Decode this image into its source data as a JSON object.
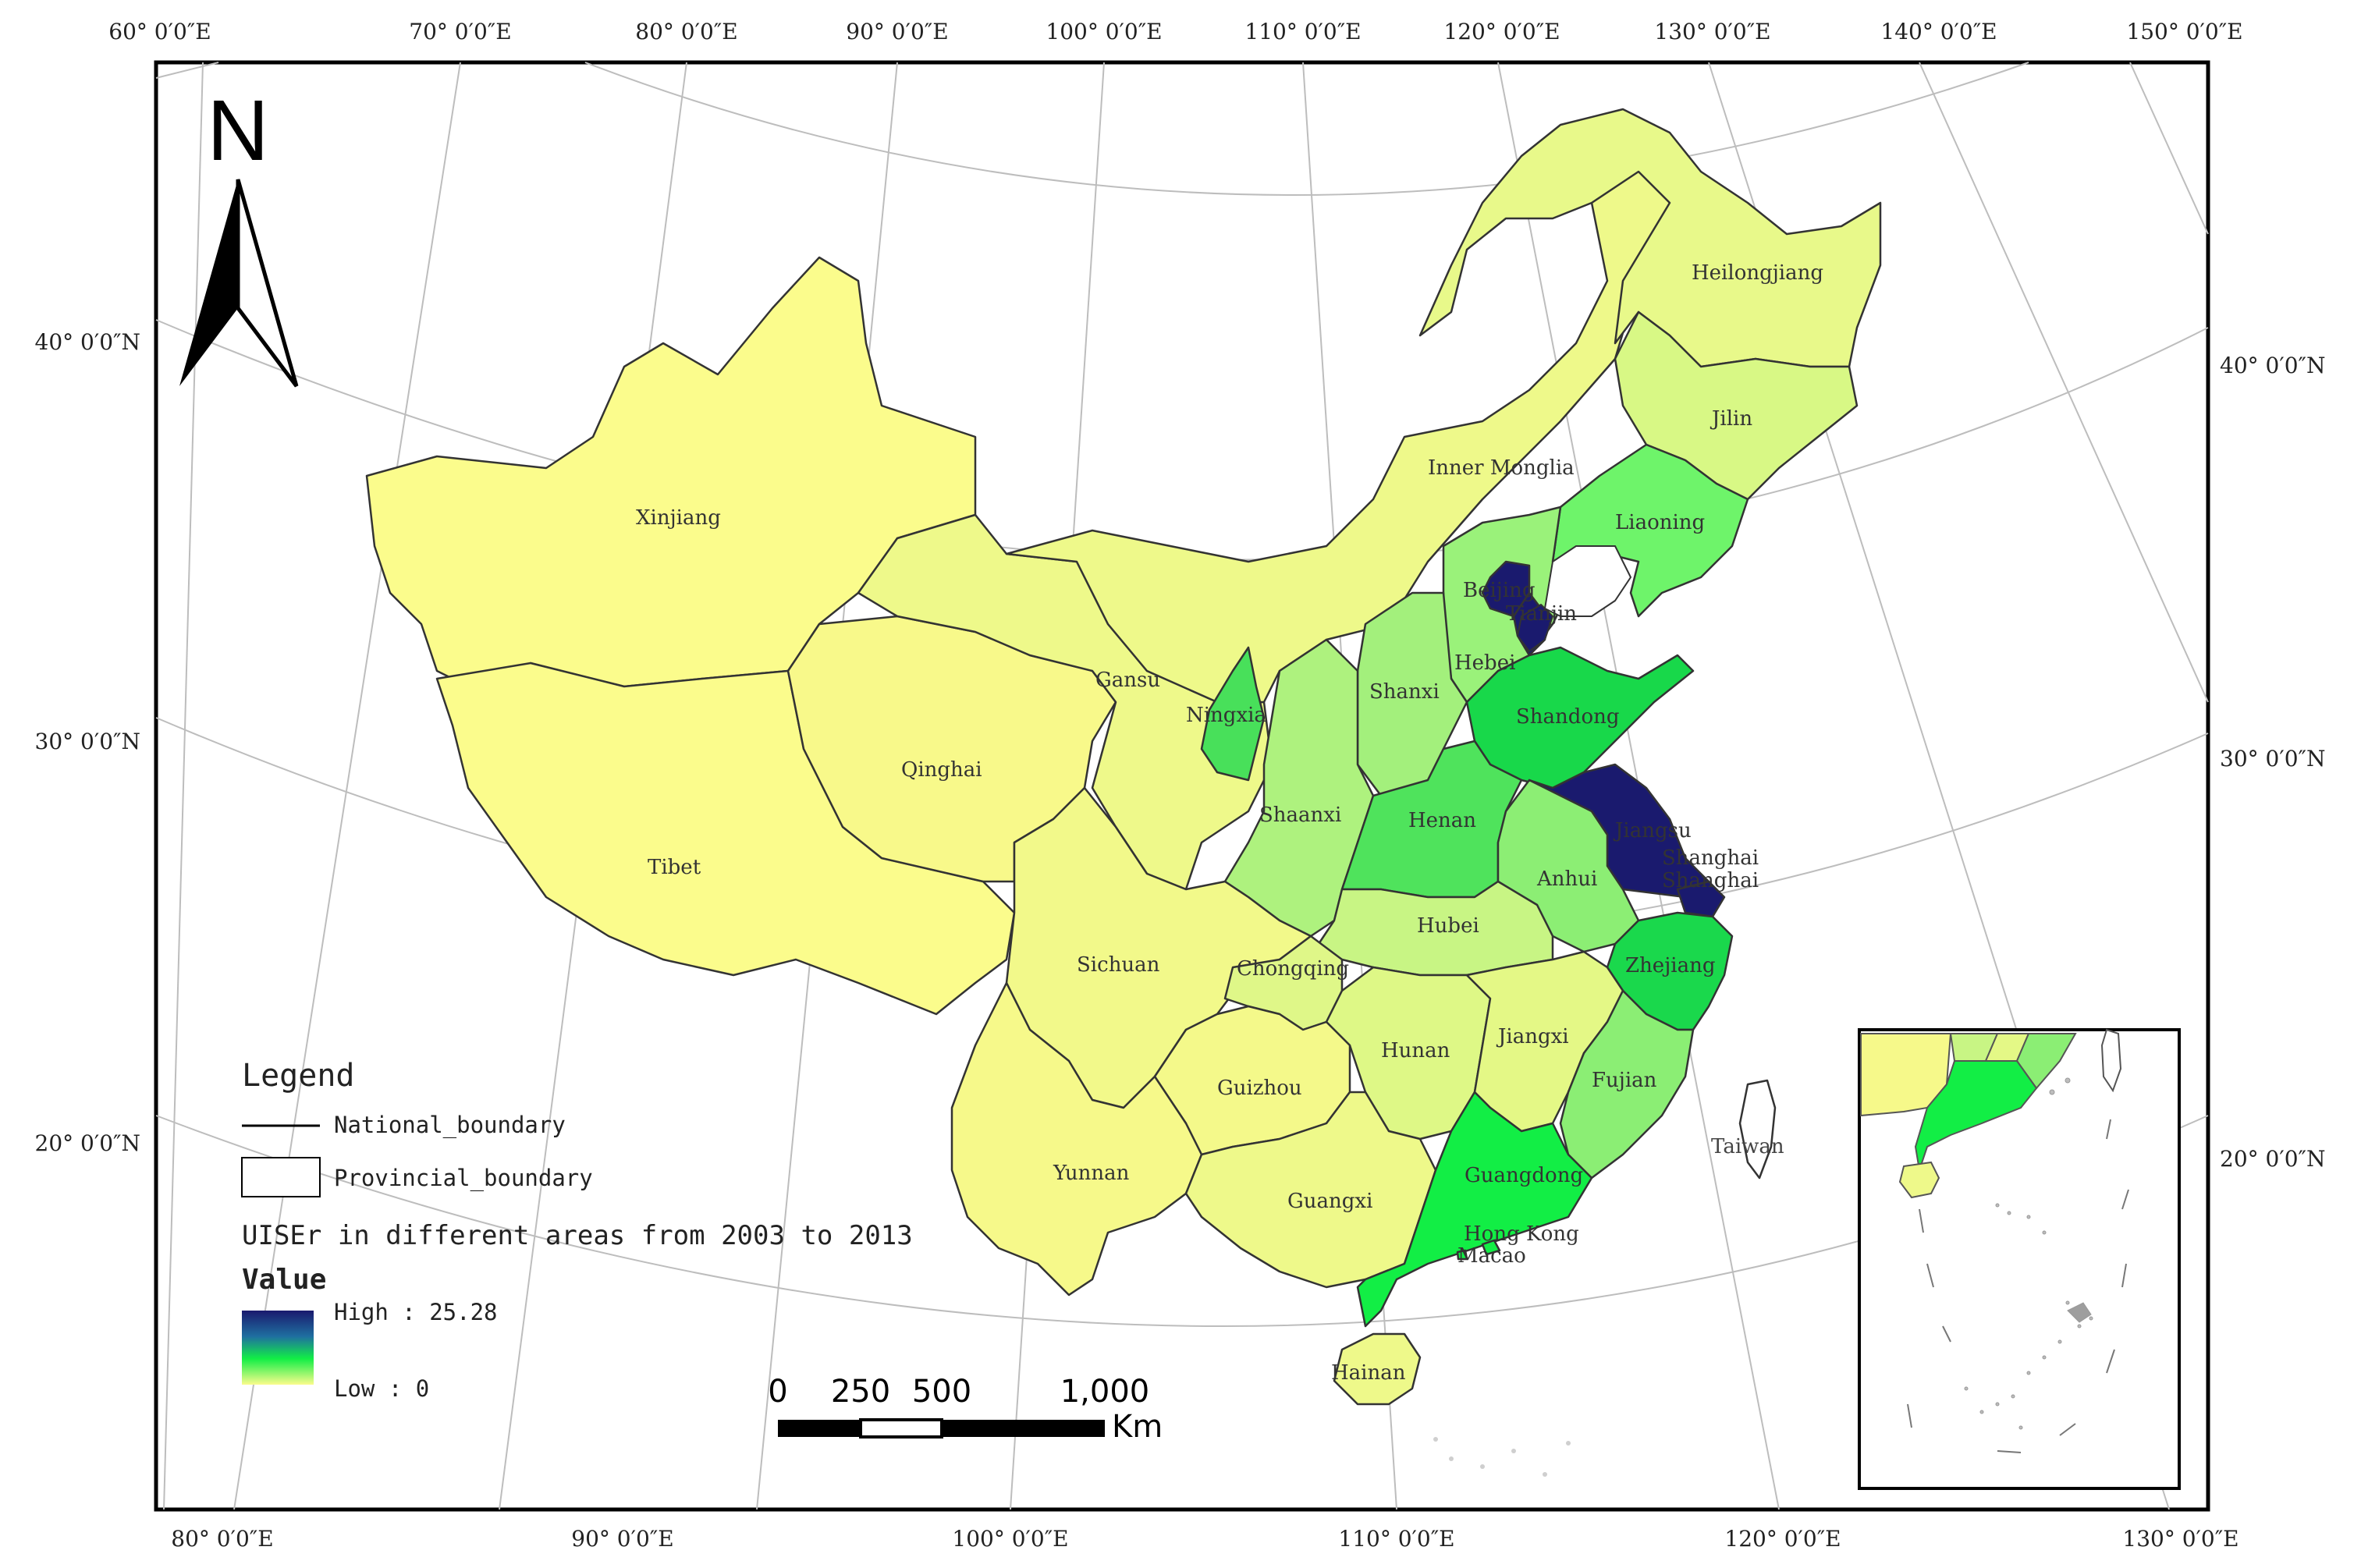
{
  "map": {
    "north_arrow": {
      "label": "N"
    },
    "top_lon_labels": [
      "60° 0′0″E",
      "70° 0′0″E",
      "80° 0′0″E",
      "90° 0′0″E",
      "100° 0′0″E",
      "110° 0′0″E",
      "120° 0′0″E",
      "130° 0′0″E",
      "140° 0′0″E",
      "150° 0′0″E"
    ],
    "bottom_lon_labels": [
      "80° 0′0″E",
      "90° 0′0″E",
      "100° 0′0″E",
      "110° 0′0″E",
      "120° 0′0″E",
      "130° 0′0″E"
    ],
    "left_lat_labels": [
      "40° 0′0″N",
      "30° 0′0″N",
      "20° 0′0″N"
    ],
    "right_lat_labels": [
      "40° 0′0″N",
      "30° 0′0″N",
      "20° 0′0″N"
    ],
    "provinces": [
      {
        "name": "Xinjiang",
        "color": "#fbfc8c"
      },
      {
        "name": "Tibet",
        "color": "#fbfc8c"
      },
      {
        "name": "Qinghai",
        "color": "#f8f98a"
      },
      {
        "name": "Gansu",
        "color": "#eef98a"
      },
      {
        "name": "Inner Monglia",
        "color": "#eef98a"
      },
      {
        "name": "Heilongjiang",
        "color": "#e8f98a"
      },
      {
        "name": "Jilin",
        "color": "#d8f885"
      },
      {
        "name": "Liaoning",
        "color": "#6ef46a"
      },
      {
        "name": "Beijing",
        "color": "#1a1a6e"
      },
      {
        "name": "Tianjin",
        "color": "#1a1a6e"
      },
      {
        "name": "Hebei",
        "color": "#9af27a"
      },
      {
        "name": "Shanxi",
        "color": "#a3f07c"
      },
      {
        "name": "Shandong",
        "color": "#18d84a"
      },
      {
        "name": "Ningxia",
        "color": "#48e05a"
      },
      {
        "name": "Shaanxi",
        "color": "#aef27e"
      },
      {
        "name": "Henan",
        "color": "#4fe35c"
      },
      {
        "name": "Jiangsu",
        "color": "#1a1a6e"
      },
      {
        "name": "Shanghai",
        "color": "#1a1a6e"
      },
      {
        "name": "Anhui",
        "color": "#8cee74"
      },
      {
        "name": "Hubei",
        "color": "#c8f584"
      },
      {
        "name": "Zhejiang",
        "color": "#1ad84c"
      },
      {
        "name": "Sichuan",
        "color": "#f2f98a"
      },
      {
        "name": "Chongqing",
        "color": "#dff788"
      },
      {
        "name": "Hunan",
        "color": "#def886"
      },
      {
        "name": "Jiangxi",
        "color": "#e4f886"
      },
      {
        "name": "Fujian",
        "color": "#8bee74"
      },
      {
        "name": "Guizhou",
        "color": "#f4f98a"
      },
      {
        "name": "Yunnan",
        "color": "#f6f98a"
      },
      {
        "name": "Guangxi",
        "color": "#eef98a"
      },
      {
        "name": "Guangdong",
        "color": "#12ee45"
      },
      {
        "name": "Hong Kong",
        "color": "#12ee45"
      },
      {
        "name": "Macao",
        "color": "#12ee45"
      },
      {
        "name": "Hainan",
        "color": "#eef98a"
      },
      {
        "name": "Taiwan",
        "color": "#ffffff"
      }
    ]
  },
  "legend": {
    "title": "Legend",
    "national_boundary": "National_boundary",
    "provincial_boundary": "Provincial_boundary",
    "subtitle": "UISEr in different areas from 2003 to 2013",
    "value_title": "Value",
    "high_label": "High : 25.28",
    "low_label": "Low : 0",
    "gradient_colors": [
      "#1a1a6e",
      "#1f6fa0",
      "#12ee45",
      "#fbfc8c"
    ]
  },
  "scale_bar": {
    "ticks": [
      "0",
      "250",
      "500",
      "1,000"
    ],
    "unit": "Km"
  }
}
